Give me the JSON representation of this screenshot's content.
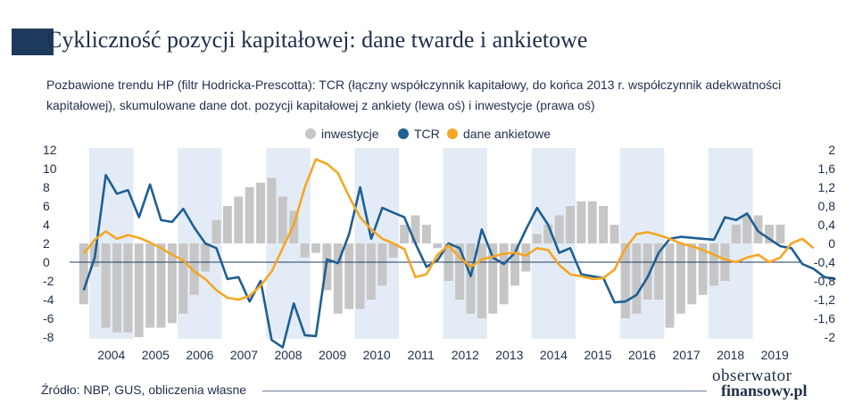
{
  "header": {
    "title": "Cykliczność pozycji kapitałowej: dane twarde i ankietowe",
    "subtitle": "Pozbawione trendu HP (filtr Hodricka-Prescotta): TCR (łączny współczynnik kapitałowy, do końca 2013 r. współczynnik adekwatności kapitałowej), skumulowane dane dot. pozycji kapitałowej z ankiety (lewa oś) i inwestycje (prawa oś)"
  },
  "footer": {
    "source": "Źródło: NBP, GUS, obliczenia własne",
    "logo_line1": "obserwator",
    "logo_line2": "finansowy.pl"
  },
  "chart_data": {
    "type": "line",
    "title": "Cykliczność pozycji kapitałowej: dane twarde i ankietowe",
    "legend_position": "top-center",
    "grid": false,
    "colors": {
      "inwestycje": "#c6c6c6",
      "TCR": "#1f5f93",
      "dane_ankietowe": "#f5a623",
      "band": "#e3ecf6"
    },
    "years": [
      "2004",
      "2005",
      "2006",
      "2007",
      "2008",
      "2009",
      "2010",
      "2011",
      "2012",
      "2013",
      "2014",
      "2015",
      "2016",
      "2017",
      "2018",
      "2019"
    ],
    "year_band_shaded": [
      true,
      false,
      true,
      false,
      true,
      false,
      true,
      false,
      true,
      false,
      true,
      false,
      true,
      false,
      true,
      false
    ],
    "left_axis": {
      "min": -8,
      "max": 12,
      "ticks": [
        "12",
        "10",
        "8",
        "6",
        "4",
        "2",
        "0",
        "-2",
        "-4",
        "-6",
        "-8"
      ]
    },
    "right_axis": {
      "min": -2,
      "max": 2,
      "ticks": [
        "2",
        "1,6",
        "1,2",
        "0,8",
        "0,4",
        "0",
        "-0,4",
        "-0,8",
        "-1,2",
        "-1,6",
        "-2"
      ]
    },
    "x_start": "2003Q4",
    "series": [
      {
        "name": "inwestycje",
        "axis": "right",
        "kind": "bar",
        "values": [
          -1.3,
          -0.5,
          -1.8,
          -1.9,
          -1.9,
          -2.0,
          -1.8,
          -1.8,
          -1.7,
          -1.5,
          -1.1,
          -0.6,
          0.5,
          0.8,
          1.0,
          1.2,
          1.3,
          1.4,
          1.0,
          0.7,
          -0.3,
          -0.2,
          -1.0,
          -1.5,
          -1.4,
          -1.4,
          -1.2,
          -0.9,
          -0.3,
          0.4,
          0.6,
          0.4,
          -0.1,
          -0.8,
          -1.2,
          -1.5,
          -1.6,
          -1.5,
          -1.3,
          -0.9,
          -0.6,
          0.2,
          0.4,
          0.6,
          0.8,
          0.9,
          0.9,
          0.8,
          0.4,
          -1.6,
          -1.5,
          -1.2,
          -1.2,
          -1.8,
          -1.5,
          -1.3,
          -1.1,
          -0.9,
          -0.8,
          0.4,
          0.6,
          0.6,
          0.4,
          0.4
        ]
      },
      {
        "name": "TCR",
        "axis": "left",
        "values": [
          -3.0,
          0.5,
          9.3,
          7.3,
          7.7,
          4.8,
          8.3,
          4.5,
          4.3,
          5.7,
          3.7,
          2.0,
          1.5,
          -1.8,
          -1.6,
          -4.2,
          -2.0,
          -8.3,
          -9.1,
          -4.4,
          -7.8,
          -7.9,
          0.3,
          -0.1,
          3.0,
          8.0,
          2.5,
          5.8,
          5.3,
          4.8,
          2.0,
          -0.5,
          0.2,
          2.0,
          1.5,
          -1.5,
          3.5,
          0.5,
          -0.2,
          1.0,
          3.5,
          5.8,
          4.0,
          1.0,
          1.5,
          -1.3,
          -1.5,
          -1.7,
          -4.3,
          -4.2,
          -3.5,
          -1.6,
          1.0,
          2.5,
          2.7,
          2.6,
          2.5,
          2.4,
          4.8,
          4.5,
          5.2,
          3.3,
          2.5,
          1.7,
          1.5,
          -0.2,
          -0.7,
          -1.6,
          -1.8
        ]
      },
      {
        "name": "dane ankietowe",
        "axis": "left",
        "values": [
          0.9,
          2.4,
          3.3,
          2.5,
          2.9,
          2.6,
          2.1,
          1.5,
          0.8,
          0.2,
          -1.0,
          -1.8,
          -3.0,
          -3.8,
          -4.0,
          -3.6,
          -2.5,
          -1.0,
          1.5,
          4.0,
          8.0,
          11.0,
          10.5,
          9.5,
          7.0,
          4.8,
          3.5,
          2.5,
          2.0,
          1.4,
          -1.6,
          -1.3,
          0.8,
          1.8,
          0.5,
          -0.5,
          0.3,
          0.6,
          0.9,
          1.0,
          0.7,
          1.5,
          1.3,
          -0.3,
          -1.3,
          -1.5,
          -1.8,
          -1.7,
          -0.8,
          1.5,
          3.0,
          3.2,
          2.9,
          2.5,
          2.0,
          1.7,
          1.3,
          0.8,
          0.3,
          0.0,
          0.5,
          0.8,
          0.0,
          0.5,
          2.0,
          2.5,
          1.5
        ]
      }
    ]
  }
}
